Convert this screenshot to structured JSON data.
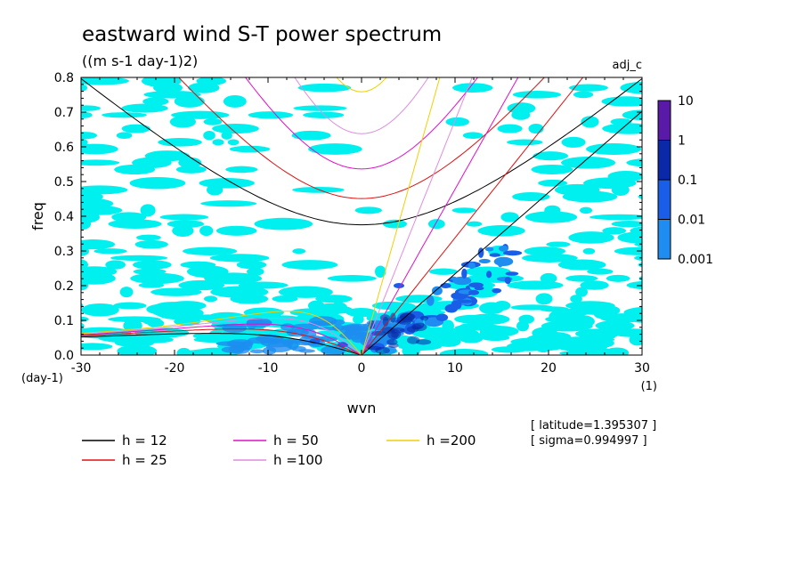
{
  "chart_data": {
    "type": "heatmap",
    "title": "eastward wind S-T power spectrum",
    "subtitle": "((m s-1 day-1)2)",
    "tag": "adj_c",
    "xlabel": "wvn",
    "ylabel": "freq",
    "x_unit": "(1)",
    "y_unit": "(day-1)",
    "xlim": [
      -30,
      30
    ],
    "ylim": [
      0,
      0.8
    ],
    "x_ticks": [
      -30,
      -20,
      -10,
      0,
      10,
      20,
      30
    ],
    "y_ticks": [
      0.0,
      0.1,
      0.2,
      0.3,
      0.4,
      0.5,
      0.6,
      0.7,
      0.8
    ],
    "x_tick_labels": [
      "-30",
      "-20",
      "-10",
      "0",
      "10",
      "20",
      "30"
    ],
    "y_tick_labels": [
      "0.0",
      "0.1",
      "0.2",
      "0.3",
      "0.4",
      "0.5",
      "0.6",
      "0.7",
      "0.8"
    ],
    "colorbar": {
      "levels": [
        "10",
        "1",
        "0.1",
        "0.01",
        "0.001"
      ],
      "colors": [
        "#5a1aa8",
        "#0a28a8",
        "#1a5ee8",
        "#1e8cf0",
        "#00f0f0"
      ]
    },
    "legend": [
      {
        "label": "h = 12",
        "color": "#000000"
      },
      {
        "label": "h = 25",
        "color": "#e01010"
      },
      {
        "label": "h = 50",
        "color": "#e010c8"
      },
      {
        "label": "h =100",
        "color": "#e08ce0"
      },
      {
        "label": "h =200",
        "color": "#f0d000"
      }
    ],
    "notes": [
      "[ latitude=1.395307 ]",
      "[ sigma=0.994997 ]"
    ]
  }
}
